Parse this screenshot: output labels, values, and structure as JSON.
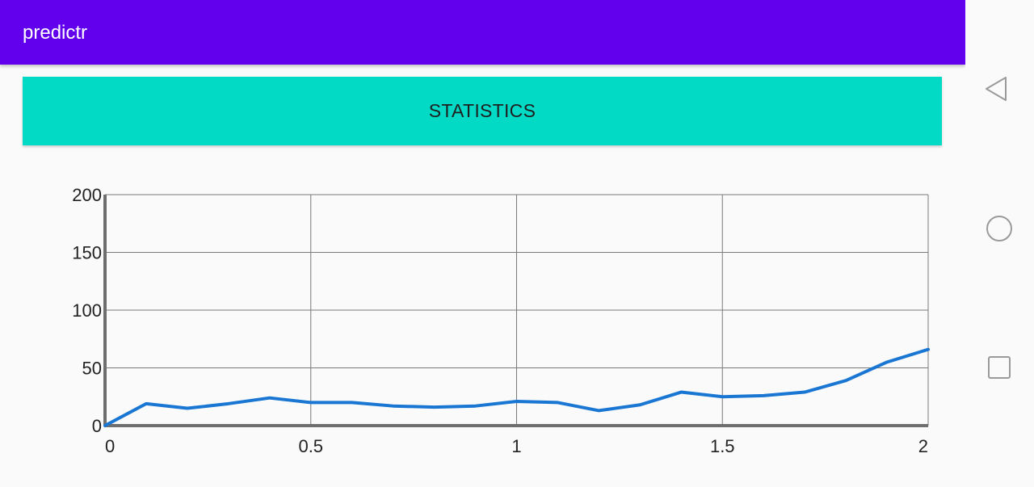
{
  "app_bar": {
    "title": "predictr",
    "color": "#6200ee"
  },
  "stats_button": {
    "label": "STATISTICS",
    "color": "#03dac5"
  },
  "chart_data": {
    "type": "line",
    "title": "",
    "xlabel": "",
    "ylabel": "",
    "xlim": [
      0,
      2
    ],
    "ylim": [
      0,
      200
    ],
    "x_ticks": [
      "0",
      "0.5",
      "1",
      "1.5",
      "2"
    ],
    "y_ticks": [
      "0",
      "50",
      "100",
      "150",
      "200"
    ],
    "grid": true,
    "series": [
      {
        "color": "#1976d2",
        "x": [
          0,
          0.1,
          0.2,
          0.3,
          0.4,
          0.5,
          0.6,
          0.7,
          0.8,
          0.9,
          1.0,
          1.1,
          1.2,
          1.3,
          1.4,
          1.5,
          1.6,
          1.7,
          1.8,
          1.9,
          2.0
        ],
        "y": [
          0,
          19,
          15,
          19,
          24,
          20,
          20,
          17,
          16,
          17,
          21,
          20,
          13,
          18,
          29,
          25,
          26,
          29,
          39,
          55,
          66
        ]
      }
    ]
  },
  "nav_bar": {
    "back": "back-triangle",
    "home": "home-circle",
    "recents": "recents-square"
  }
}
